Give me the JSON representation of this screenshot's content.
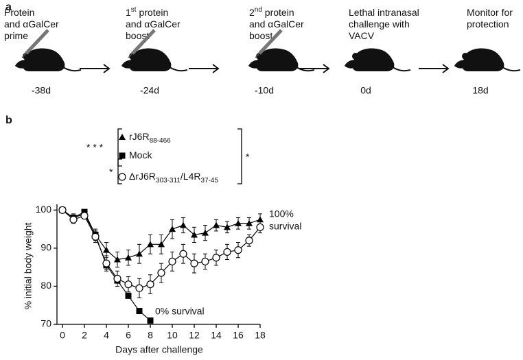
{
  "panel_a": {
    "label": "a",
    "steps": [
      {
        "lines": [
          [
            {
              "text": "Protein"
            }
          ],
          [
            {
              "text": "and αGalCer"
            }
          ],
          [
            {
              "text": "prime"
            }
          ]
        ],
        "day": "-38d"
      },
      {
        "lines": [
          [
            {
              "text": "1"
            },
            {
              "text": "st",
              "sup": true
            },
            {
              "text": " protein"
            }
          ],
          [
            {
              "text": "and αGalCer"
            }
          ],
          [
            {
              "text": "boost"
            }
          ]
        ],
        "day": "-24d"
      },
      {
        "lines": [
          [
            {
              "text": "2"
            },
            {
              "text": "nd",
              "sup": true
            },
            {
              "text": " protein"
            }
          ],
          [
            {
              "text": "and αGalCer"
            }
          ],
          [
            {
              "text": "boost"
            }
          ]
        ],
        "day": "-10d"
      },
      {
        "lines": [
          [
            {
              "text": "Lethal intranasal"
            }
          ],
          [
            {
              "text": "challenge with"
            }
          ],
          [
            {
              "text": "VACV"
            }
          ]
        ],
        "day": "0d"
      },
      {
        "lines": [
          [
            {
              "text": "Monitor for"
            }
          ],
          [
            {
              "text": "protection"
            }
          ]
        ],
        "day": "18d"
      }
    ]
  },
  "chart_data": {
    "type": "line",
    "panel_label": "b",
    "x_label": "Days after challenge",
    "y_label": "% initial body weight",
    "x": [
      0,
      1,
      2,
      3,
      4,
      5,
      6,
      7,
      8,
      9,
      10,
      11,
      12,
      13,
      14,
      15,
      16,
      17,
      18
    ],
    "xlim": [
      -0.5,
      18
    ],
    "xticks": [
      0,
      2,
      4,
      6,
      8,
      10,
      12,
      14,
      16,
      18
    ],
    "ylim": [
      70,
      101.5
    ],
    "yticks": [
      70,
      80,
      90,
      100
    ],
    "series": [
      {
        "name_parts": [
          {
            "text": "rJ6R"
          },
          {
            "text": "88-466",
            "sub": true
          }
        ],
        "marker": "triangle",
        "color": "#000000",
        "values": [
          100,
          98,
          99,
          93.5,
          89.5,
          87,
          87.5,
          88.5,
          91,
          91,
          95,
          96,
          93.5,
          94,
          96,
          95.5,
          96.5,
          96.5,
          97.5
        ],
        "errors": [
          0.5,
          1,
          0.5,
          1.5,
          2,
          2,
          2,
          2.5,
          2.5,
          2.5,
          2.5,
          2,
          2,
          2,
          1.5,
          1.5,
          1.5,
          1.5,
          1.5
        ]
      },
      {
        "name_parts": [
          {
            "text": "Mock"
          }
        ],
        "marker": "square",
        "color": "#000000",
        "values": [
          100,
          98,
          99.5,
          93.5,
          85.5,
          81.5,
          77.5,
          73.5,
          71,
          null,
          null,
          null,
          null,
          null,
          null,
          null,
          null,
          null,
          null
        ],
        "errors": [
          0.5,
          0.5,
          0.5,
          1,
          1,
          0.5,
          0.5,
          0.5,
          0.5,
          null,
          null,
          null,
          null,
          null,
          null,
          null,
          null,
          null,
          null
        ]
      },
      {
        "name_parts": [
          {
            "text": "ΔrJ6R"
          },
          {
            "text": "303-311",
            "sub": true
          },
          {
            "text": "/L4R"
          },
          {
            "text": "37-45",
            "sub": true
          }
        ],
        "marker": "circle",
        "color": "#000000",
        "values": [
          100,
          97.5,
          98.5,
          93,
          86,
          82,
          80.5,
          79.5,
          80.5,
          83.5,
          86.5,
          88.5,
          86,
          86.5,
          87.5,
          89,
          89.5,
          92,
          95.5
        ],
        "errors": [
          0.5,
          1,
          0.5,
          1.5,
          2,
          2,
          2,
          2.5,
          2.5,
          2.5,
          2.5,
          2.5,
          2.5,
          2,
          2,
          2,
          2,
          1.5,
          1.5
        ]
      }
    ],
    "significance": [
      {
        "label": "* * *"
      },
      {
        "label": "*"
      },
      {
        "label": "*"
      }
    ],
    "annotations": [
      {
        "lines": [
          "100%",
          "survival"
        ]
      },
      {
        "lines": [
          "0% survival"
        ]
      }
    ]
  }
}
